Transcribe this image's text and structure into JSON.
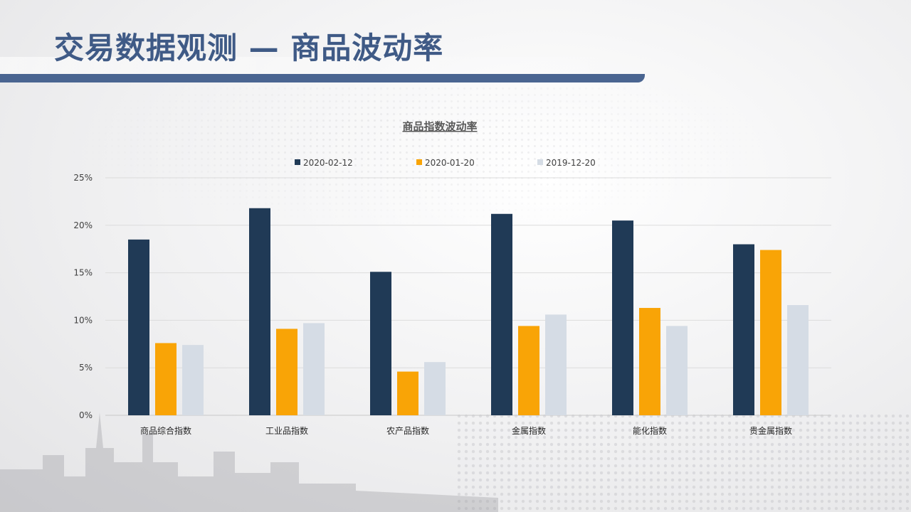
{
  "slide": {
    "title": "交易数据观测 — 商品波动率"
  },
  "colors": {
    "title": "#3f5a86",
    "bar_accent": "#4a6591"
  },
  "chart_data": {
    "type": "bar",
    "title": "商品指数波动率",
    "xlabel": "",
    "ylabel": "",
    "categories": [
      "商品综合指数",
      "工业品指数",
      "农产品指数",
      "金属指数",
      "能化指数",
      "贵金属指数"
    ],
    "series": [
      {
        "name": "2020-02-12",
        "color": "#203a56",
        "values": [
          18.5,
          21.8,
          15.1,
          21.2,
          20.5,
          18.0
        ]
      },
      {
        "name": "2020-01-20",
        "color": "#f9a406",
        "values": [
          7.6,
          9.1,
          4.6,
          9.4,
          11.3,
          17.4
        ]
      },
      {
        "name": "2019-12-20",
        "color": "#d5dce5",
        "values": [
          7.4,
          9.7,
          5.6,
          10.6,
          9.4,
          11.6
        ]
      }
    ],
    "ylim": [
      0,
      25
    ],
    "yticks": [
      0,
      5,
      10,
      15,
      20,
      25
    ],
    "ytick_labels": [
      "0%",
      "5%",
      "10%",
      "15%",
      "20%",
      "25%"
    ],
    "grid": true,
    "legend_position": "top-center"
  }
}
